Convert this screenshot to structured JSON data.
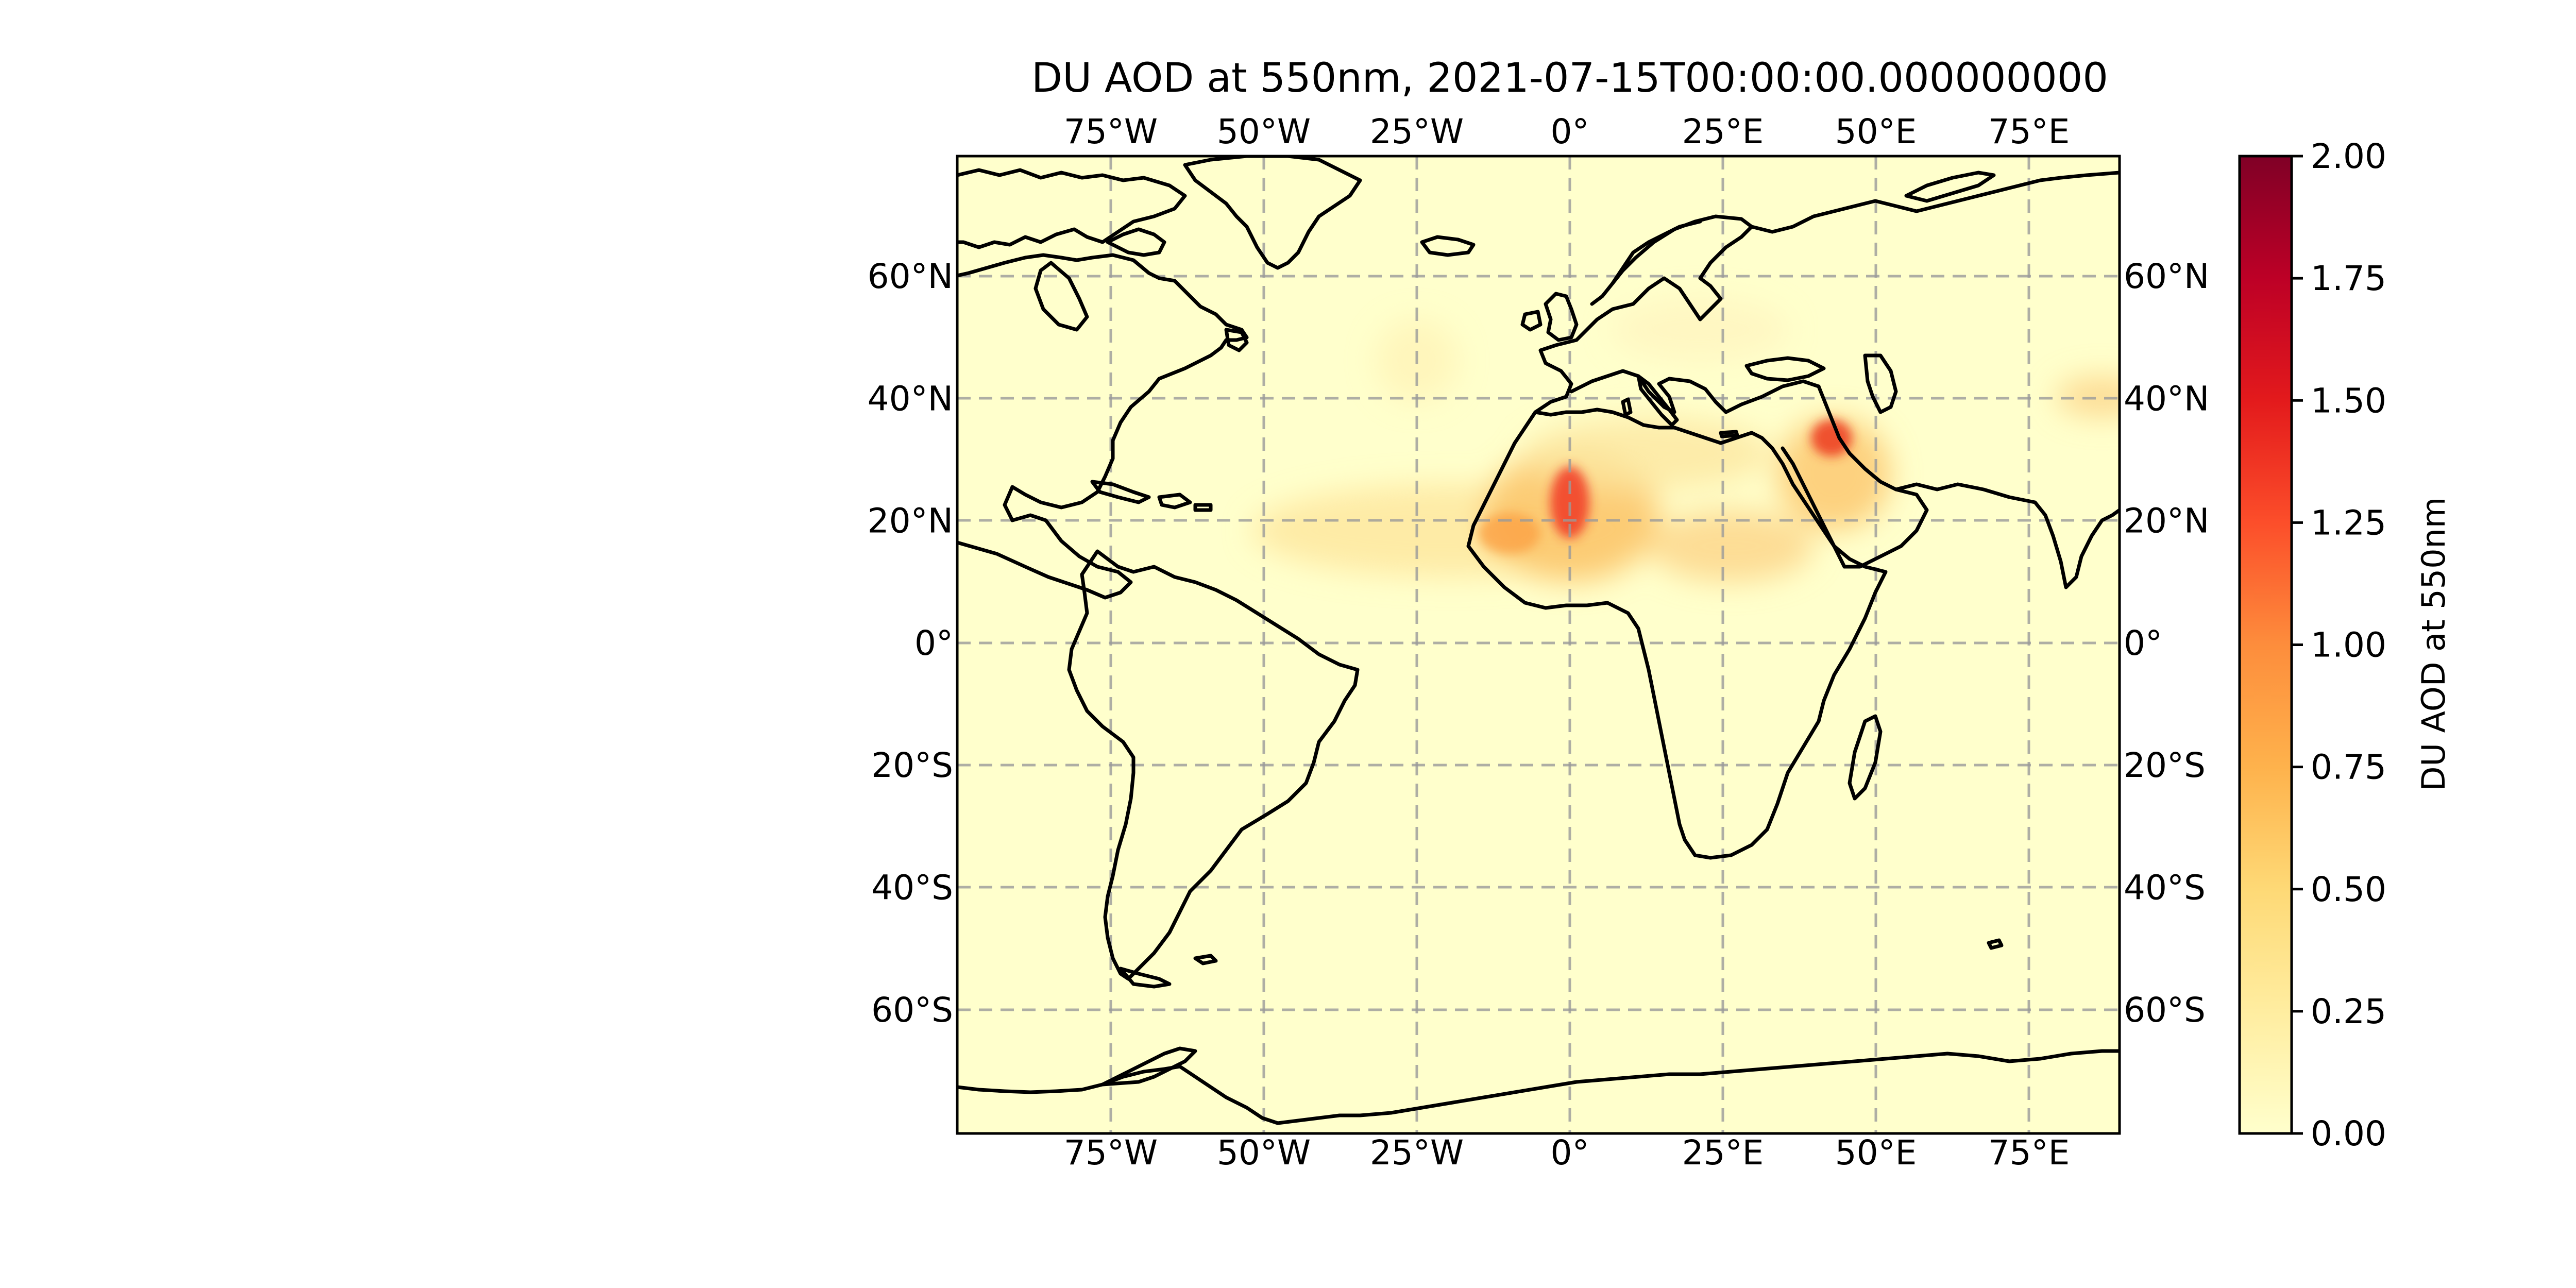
{
  "title": "DU AOD at 550nm, 2021-07-15T00:00:00.000000000",
  "axes": {
    "lon_ticks": [
      "75°W",
      "50°W",
      "25°W",
      "0°",
      "25°E",
      "50°E",
      "75°E"
    ],
    "lat_ticks": [
      "60°N",
      "40°N",
      "20°N",
      "0°",
      "20°S",
      "40°S",
      "60°S"
    ]
  },
  "colorbar": {
    "label": "DU AOD at 550nm",
    "ticks": [
      "0.00",
      "0.25",
      "0.50",
      "0.75",
      "1.00",
      "1.25",
      "1.50",
      "1.75",
      "2.00"
    ],
    "range": [
      0,
      2
    ],
    "colormap": "YlOrRd",
    "colors": [
      "#ffffcc",
      "#ffeda0",
      "#fed976",
      "#feb24c",
      "#fd8d3c",
      "#fc4e2a",
      "#e31a1c",
      "#bd0026",
      "#800026"
    ]
  },
  "map": {
    "background_color": "#ffffcc",
    "coastline_color": "#000000",
    "gridlines": true,
    "extent_lon": [
      -100,
      90
    ],
    "extent_lat": [
      -80,
      80
    ]
  },
  "chart_data": {
    "type": "heatmap",
    "title": "DU AOD at 550nm, 2021-07-15T00:00:00.000000000",
    "variable": "DU AOD at 550nm",
    "value_range": [
      0,
      2
    ],
    "dust_features": [
      {
        "lon": 0,
        "lat": 23,
        "value": 1.6
      },
      {
        "lon": -10,
        "lat": 18,
        "value": 0.6
      },
      {
        "lon": -25,
        "lat": 18,
        "value": 0.35
      },
      {
        "lon": -45,
        "lat": 15,
        "value": 0.2
      },
      {
        "lon": 10,
        "lat": 32,
        "value": 0.35
      },
      {
        "lon": 30,
        "lat": 17,
        "value": 0.4
      },
      {
        "lon": 43,
        "lat": 34,
        "value": 1.2
      },
      {
        "lon": 48,
        "lat": 28,
        "value": 0.5
      },
      {
        "lon": 85,
        "lat": 40,
        "value": 0.35
      },
      {
        "lon": 20,
        "lat": 52,
        "value": 0.12
      }
    ]
  }
}
